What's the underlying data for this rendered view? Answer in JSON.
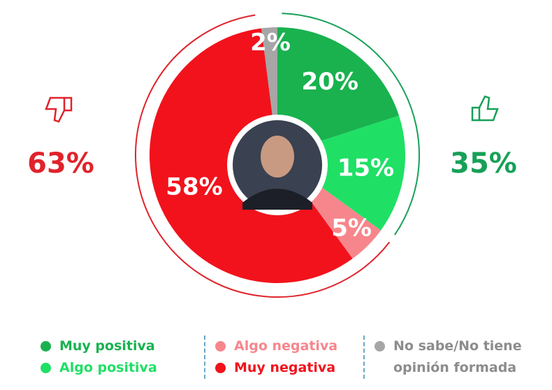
{
  "chart_data": {
    "type": "pie",
    "categories": [
      "Muy positiva",
      "Algo positiva",
      "Algo negativa",
      "Muy negativa",
      "No sabe/No tiene opinión formada"
    ],
    "values": [
      20,
      15,
      5,
      58,
      2
    ],
    "value_labels": [
      "20%",
      "15%",
      "5%",
      "58%",
      "2%"
    ],
    "colors": [
      "#19b24f",
      "#1fe065",
      "#f7868c",
      "#f2121c",
      "#a6a6a6"
    ],
    "totals": [
      {
        "value": 35,
        "label": "35%",
        "color": "#17a058"
      },
      {
        "value": 63,
        "label": "63%",
        "color": "#e0232b"
      }
    ]
  }
}
